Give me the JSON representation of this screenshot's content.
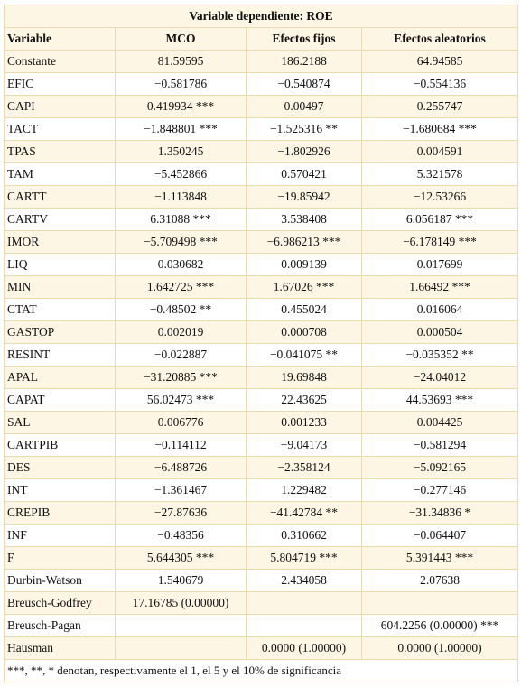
{
  "table": {
    "title": "Variable dependiente: ROE",
    "header": [
      "Variable",
      "MCO",
      "Efectos fijos",
      "Efectos aleatorios"
    ],
    "rows": [
      [
        "Constante",
        "81.59595",
        "186.2188",
        "64.94585"
      ],
      [
        "EFIC",
        "−0.581786",
        "−0.540874",
        "−0.554136"
      ],
      [
        "CAPI",
        "0.419934 ***",
        "0.00497",
        "0.255747"
      ],
      [
        "TACT",
        "−1.848801 ***",
        "−1.525316 **",
        "−1.680684 ***"
      ],
      [
        "TPAS",
        "1.350245",
        "−1.802926",
        "0.004591"
      ],
      [
        "TAM",
        "−5.452866",
        "0.570421",
        "5.321578"
      ],
      [
        "CARTT",
        "−1.113848",
        "−19.85942",
        "−12.53266"
      ],
      [
        "CARTV",
        "6.31088 ***",
        "3.538408",
        "6.056187 ***"
      ],
      [
        "IMOR",
        "−5.709498 ***",
        "−6.986213 ***",
        "−6.178149 ***"
      ],
      [
        "LIQ",
        "0.030682",
        "0.009139",
        "0.017699"
      ],
      [
        "MIN",
        "1.642725 ***",
        "1.67026 ***",
        "1.66492 ***"
      ],
      [
        "CTAT",
        "−0.48502 **",
        "0.455024",
        "0.016064"
      ],
      [
        "GASTOP",
        "0.002019",
        "0.000708",
        "0.000504"
      ],
      [
        "RESINT",
        "−0.022887",
        "−0.041075 **",
        "−0.035352 **"
      ],
      [
        "APAL",
        "−31.20885 ***",
        "19.69848",
        "−24.04012"
      ],
      [
        "CAPAT",
        "56.02473 ***",
        "22.43625",
        "44.53693 ***"
      ],
      [
        "SAL",
        "0.006776",
        "0.001233",
        "0.004425"
      ],
      [
        "CARTPIB",
        "−0.114112",
        "−9.04173",
        "−0.581294"
      ],
      [
        "DES",
        "−6.488726",
        "−2.358124",
        "−5.092165"
      ],
      [
        "INT",
        "−1.361467",
        "1.229482",
        "−0.277146"
      ],
      [
        "CREPIB",
        "−27.87636",
        "−41.42784 **",
        "−31.34836 *"
      ],
      [
        "INF",
        "−0.48356",
        "0.310662",
        "−0.064407"
      ],
      [
        "F",
        "5.644305 ***",
        "5.804719 ***",
        "5.391443 ***"
      ],
      [
        "Durbin-Watson",
        "1.540679",
        "2.434058",
        "2.07638"
      ],
      [
        "Breusch-Godfrey",
        "17.16785 (0.00000)",
        null,
        null
      ],
      [
        "Breusch-Pagan",
        null,
        null,
        "604.2256 (0.00000) ***"
      ],
      [
        "Hausman",
        null,
        "0.0000 (1.00000)",
        "0.0000 (1.00000)"
      ]
    ],
    "footnote": "***, **, * denotan, respectivamente el 1, el 5 y el 10% de significancia"
  }
}
